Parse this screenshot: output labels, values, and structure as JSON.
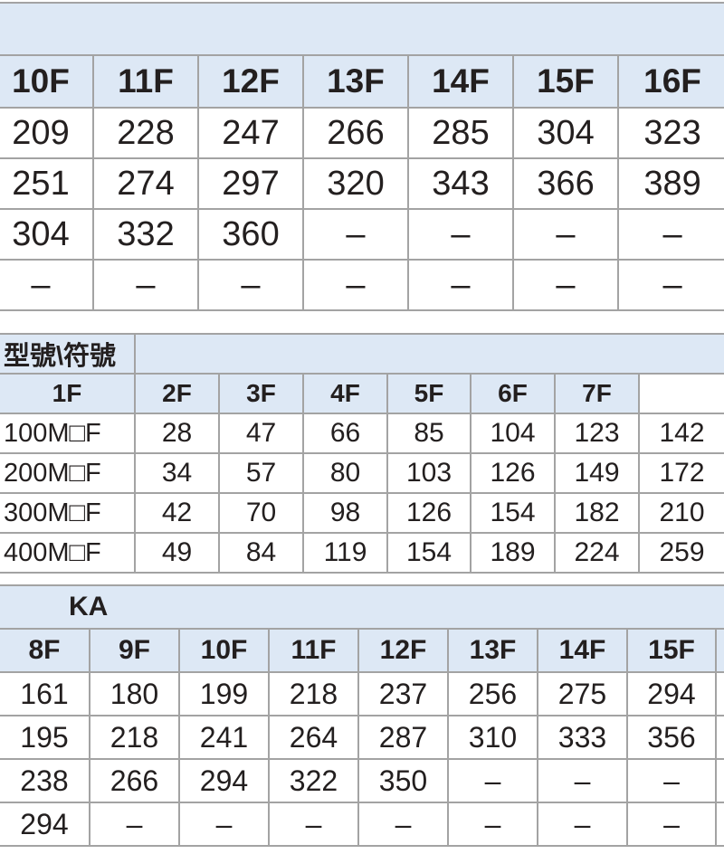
{
  "table_top": {
    "headers": [
      "10F",
      "11F",
      "12F",
      "13F",
      "14F",
      "15F",
      "16F"
    ],
    "rows": [
      [
        "209",
        "228",
        "247",
        "266",
        "285",
        "304",
        "323"
      ],
      [
        "251",
        "274",
        "297",
        "320",
        "343",
        "366",
        "389"
      ],
      [
        "304",
        "332",
        "360",
        "–",
        "–",
        "–",
        "–"
      ],
      [
        "–",
        "–",
        "–",
        "–",
        "–",
        "–",
        "–"
      ]
    ]
  },
  "table_middle": {
    "corner_label": "型號\\符號",
    "headers": [
      "1F",
      "2F",
      "3F",
      "4F",
      "5F",
      "6F",
      "7F"
    ],
    "rows": [
      {
        "model": "100M□F",
        "values": [
          "28",
          "47",
          "66",
          "85",
          "104",
          "123",
          "142"
        ]
      },
      {
        "model": "200M□F",
        "values": [
          "34",
          "57",
          "80",
          "103",
          "126",
          "149",
          "172"
        ]
      },
      {
        "model": "300M□F",
        "values": [
          "42",
          "70",
          "98",
          "126",
          "154",
          "182",
          "210"
        ]
      },
      {
        "model": "400M□F",
        "values": [
          "49",
          "84",
          "119",
          "154",
          "189",
          "224",
          "259"
        ]
      }
    ]
  },
  "table_bottom": {
    "group_label": "KA",
    "headers": [
      "8F",
      "9F",
      "10F",
      "11F",
      "12F",
      "13F",
      "14F",
      "15F"
    ],
    "rows": [
      [
        "161",
        "180",
        "199",
        "218",
        "237",
        "256",
        "275",
        "294"
      ],
      [
        "195",
        "218",
        "241",
        "264",
        "287",
        "310",
        "333",
        "356"
      ],
      [
        "238",
        "266",
        "294",
        "322",
        "350",
        "–",
        "–",
        "–"
      ],
      [
        "294",
        "–",
        "–",
        "–",
        "–",
        "–",
        "–",
        "–"
      ]
    ]
  }
}
